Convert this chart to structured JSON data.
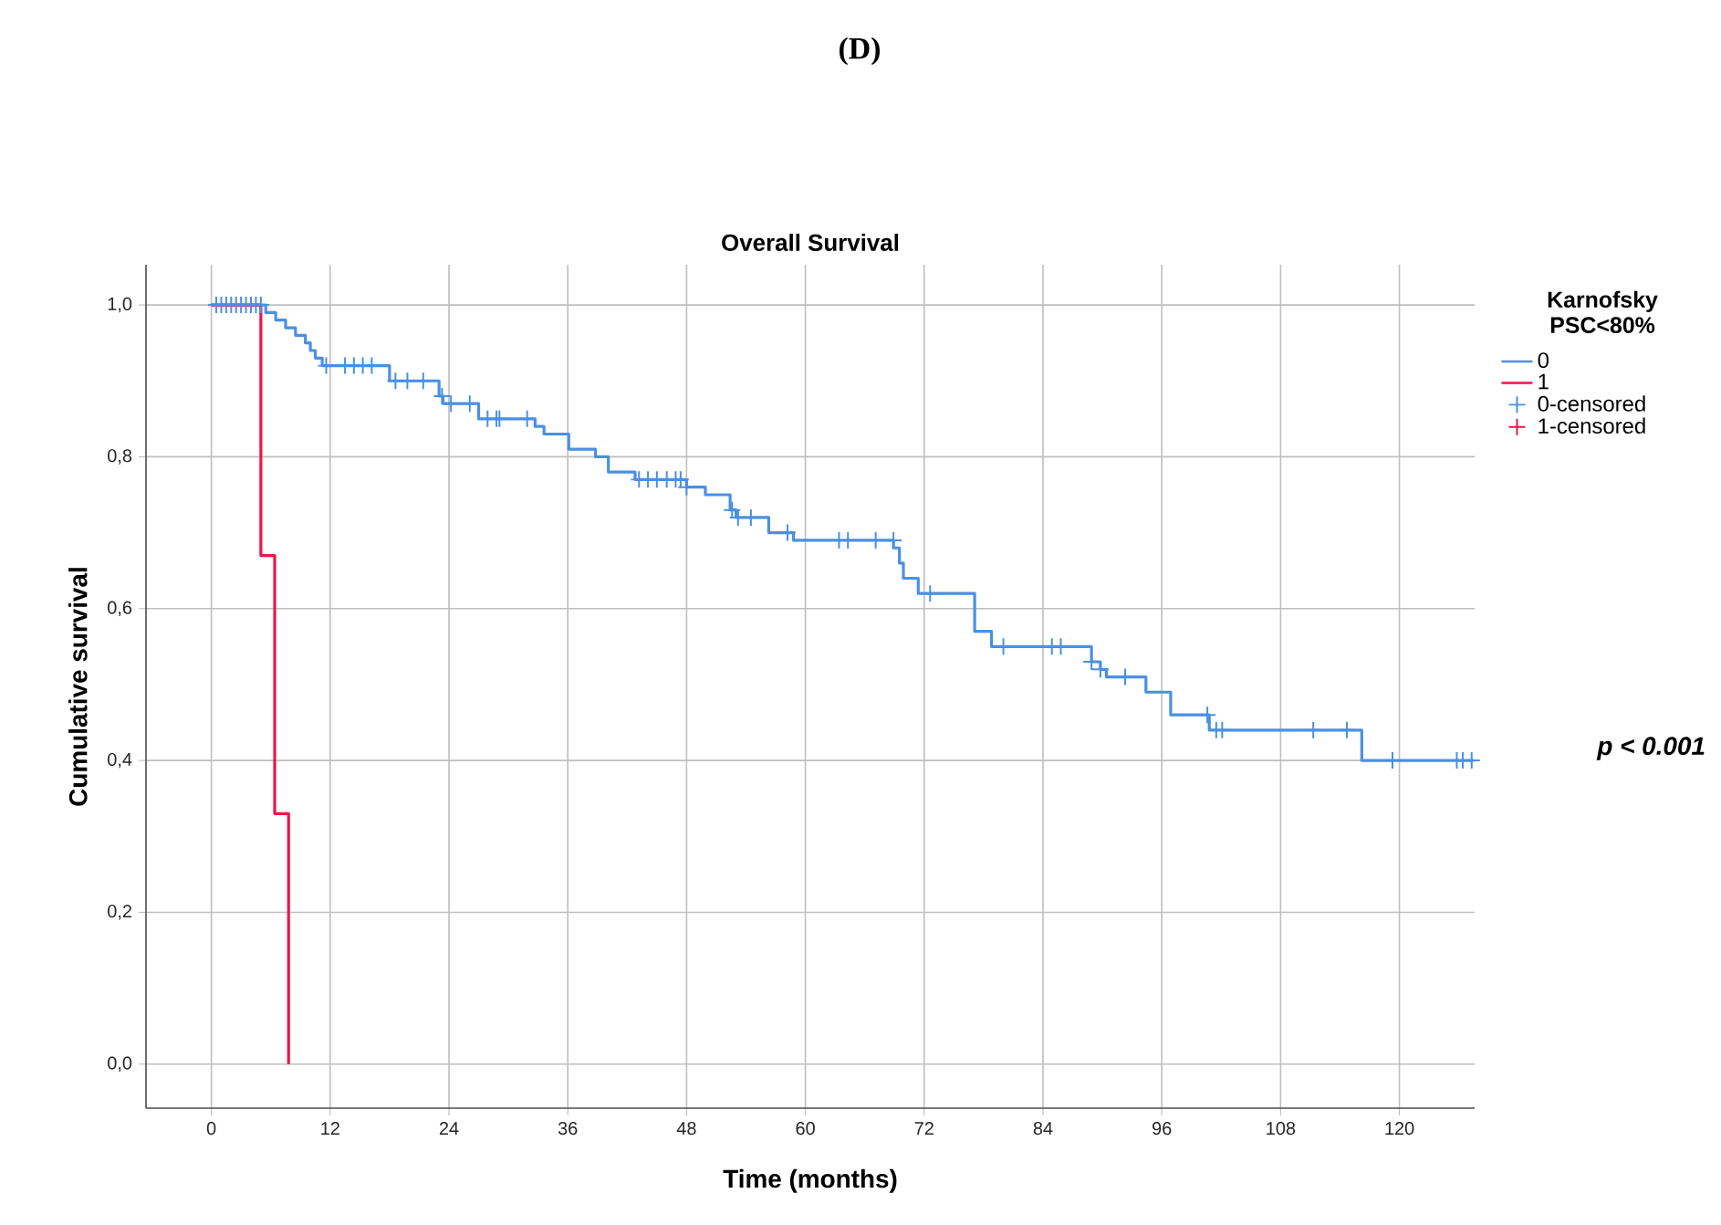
{
  "chart_data": {
    "type": "step",
    "title": "Overall Survival",
    "xlabel": "Time (months)",
    "ylabel": "Cumulative survival",
    "legend_title": "Karnofsky PSC<80%",
    "annotations": [
      "(D)",
      "p < 0.001"
    ],
    "xlim": [
      -6.6,
      127.6
    ],
    "ylim": [
      -0.058,
      1.053
    ],
    "xticks": [
      0,
      12,
      24,
      36,
      48,
      60,
      72,
      84,
      96,
      108,
      120
    ],
    "yticks": [
      {
        "value": 0,
        "label": "0,0"
      },
      {
        "value": 0.2,
        "label": "0,2"
      },
      {
        "value": 0.4,
        "label": "0,4"
      },
      {
        "value": 0.6,
        "label": "0,6"
      },
      {
        "value": 0.8,
        "label": "0,8"
      },
      {
        "value": 1,
        "label": "1,0"
      }
    ],
    "grid": true,
    "legend": "top right",
    "series": [
      {
        "name": "0",
        "color": "#4a90e2",
        "x": [
          0,
          5.5,
          6.5,
          7.5,
          8.5,
          9.5,
          10,
          10.5,
          11.2,
          18,
          23,
          23.4,
          27,
          32.7,
          33.6,
          36.1,
          38.8,
          40.1,
          42.8,
          48,
          49.9,
          52.4,
          53,
          56.3,
          58.8,
          68.9,
          69.5,
          69.9,
          71.4,
          77.1,
          78.8,
          88.9,
          89.8,
          90.4,
          94.4,
          96.9,
          100.8,
          116.2,
          127.5
        ],
        "values": [
          1,
          0.99,
          0.98,
          0.97,
          0.96,
          0.95,
          0.94,
          0.93,
          0.92,
          0.9,
          0.88,
          0.87,
          0.85,
          0.84,
          0.83,
          0.81,
          0.8,
          0.78,
          0.77,
          0.76,
          0.75,
          0.73,
          0.72,
          0.7,
          0.69,
          0.68,
          0.66,
          0.64,
          0.62,
          0.57,
          0.55,
          0.53,
          0.52,
          0.51,
          0.49,
          0.46,
          0.44,
          0.4,
          0.4
        ]
      },
      {
        "name": "1",
        "color": "#e8174a",
        "x": [
          0,
          5,
          6.4,
          7.8
        ],
        "values": [
          1,
          0.67,
          0.33,
          0
        ]
      },
      {
        "name": "0-censored",
        "type": "scatter",
        "marker": "cross",
        "color": "#4a90e2",
        "x": [
          0.5,
          1,
          1.5,
          2,
          2.5,
          3,
          3.5,
          4,
          4.5,
          5,
          11.6,
          13.5,
          14.4,
          15.3,
          16.2,
          18.6,
          19.8,
          21.4,
          23.3,
          24.2,
          26.1,
          27.9,
          28.8,
          29.1,
          31.9,
          43.2,
          44.1,
          45,
          46,
          46.9,
          47.4,
          48,
          52.6,
          53.2,
          54.5,
          58.2,
          63.4,
          64.3,
          67.1,
          68.9,
          72.6,
          80,
          84.9,
          85.8,
          88.9,
          89.8,
          92.3,
          100.6,
          101.5,
          102.1,
          111.3,
          114.7,
          119.3,
          125.8,
          126.4,
          127.3
        ],
        "values": [
          1,
          1,
          1,
          1,
          1,
          1,
          1,
          1,
          1,
          1,
          0.92,
          0.92,
          0.92,
          0.92,
          0.92,
          0.9,
          0.9,
          0.9,
          0.88,
          0.87,
          0.87,
          0.85,
          0.85,
          0.85,
          0.85,
          0.77,
          0.77,
          0.77,
          0.77,
          0.77,
          0.77,
          0.76,
          0.73,
          0.72,
          0.72,
          0.7,
          0.69,
          0.69,
          0.69,
          0.69,
          0.62,
          0.55,
          0.55,
          0.55,
          0.53,
          0.52,
          0.51,
          0.46,
          0.44,
          0.44,
          0.44,
          0.44,
          0.4,
          0.4,
          0.4,
          0.4
        ]
      },
      {
        "name": "1-censored",
        "type": "scatter",
        "marker": "cross",
        "color": "#e8174a"
      }
    ]
  }
}
